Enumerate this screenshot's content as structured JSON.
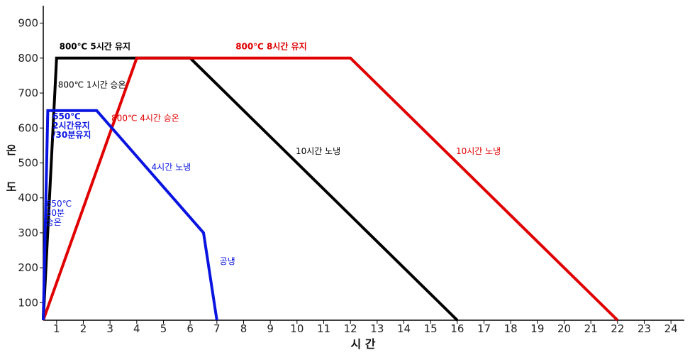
{
  "chart_data": {
    "type": "line",
    "xlabel": "시 간",
    "ylabel": "온도",
    "xlim": [
      0.5,
      24.5
    ],
    "ylim": [
      50,
      950
    ],
    "x_ticks": [
      1,
      2,
      3,
      4,
      5,
      6,
      7,
      8,
      9,
      10,
      11,
      12,
      13,
      14,
      15,
      16,
      17,
      18,
      19,
      20,
      21,
      22,
      23,
      24
    ],
    "y_ticks": [
      100,
      200,
      300,
      400,
      500,
      600,
      700,
      800,
      900
    ],
    "grid": false,
    "series": [
      {
        "color": "#000000",
        "points": [
          [
            0.5,
            50
          ],
          [
            1,
            800
          ],
          [
            6,
            800
          ],
          [
            16,
            50
          ]
        ]
      },
      {
        "color": "#e00000",
        "points": [
          [
            0.5,
            50
          ],
          [
            4,
            800
          ],
          [
            12,
            800
          ],
          [
            22,
            50
          ]
        ]
      },
      {
        "color": "#0a14e0",
        "points": [
          [
            0.5,
            50
          ],
          [
            0.67,
            650
          ],
          [
            2.5,
            650
          ],
          [
            6.5,
            300
          ],
          [
            7,
            50
          ]
        ]
      }
    ],
    "annotations": [
      {
        "lines": [
          "800℃ 5시간 유지"
        ],
        "color": "#000000",
        "bold": true,
        "x": 1.1,
        "y": 825
      },
      {
        "lines": [
          "800℃ 8시간 유지"
        ],
        "color": "#e00000",
        "bold": true,
        "x": 7.7,
        "y": 825
      },
      {
        "lines": [
          "800℃ 1시간 승온"
        ],
        "color": "#000000",
        "bold": false,
        "x": 1.05,
        "y": 715
      },
      {
        "lines": [
          "800℃ 4시간 승온"
        ],
        "color": "#e00000",
        "bold": false,
        "x": 3.05,
        "y": 620
      },
      {
        "lines": [
          "650℃",
          "2시간유지",
          "/30분유지"
        ],
        "color": "#0a14e0",
        "bold": true,
        "x": 0.85,
        "y": 625
      },
      {
        "lines": [
          "4시간 노냉"
        ],
        "color": "#0a14e0",
        "bold": false,
        "x": 4.55,
        "y": 480
      },
      {
        "lines": [
          "650℃",
          "30분",
          "승온"
        ],
        "color": "#0a14e0",
        "bold": false,
        "x": 0.6,
        "y": 375
      },
      {
        "lines": [
          "공냉"
        ],
        "color": "#0a14e0",
        "bold": false,
        "x": 7.1,
        "y": 210
      },
      {
        "lines": [
          "10시간 노냉"
        ],
        "color": "#000000",
        "bold": false,
        "x": 9.95,
        "y": 525
      },
      {
        "lines": [
          "10시간 노냉"
        ],
        "color": "#e00000",
        "bold": false,
        "x": 15.95,
        "y": 525
      }
    ]
  }
}
